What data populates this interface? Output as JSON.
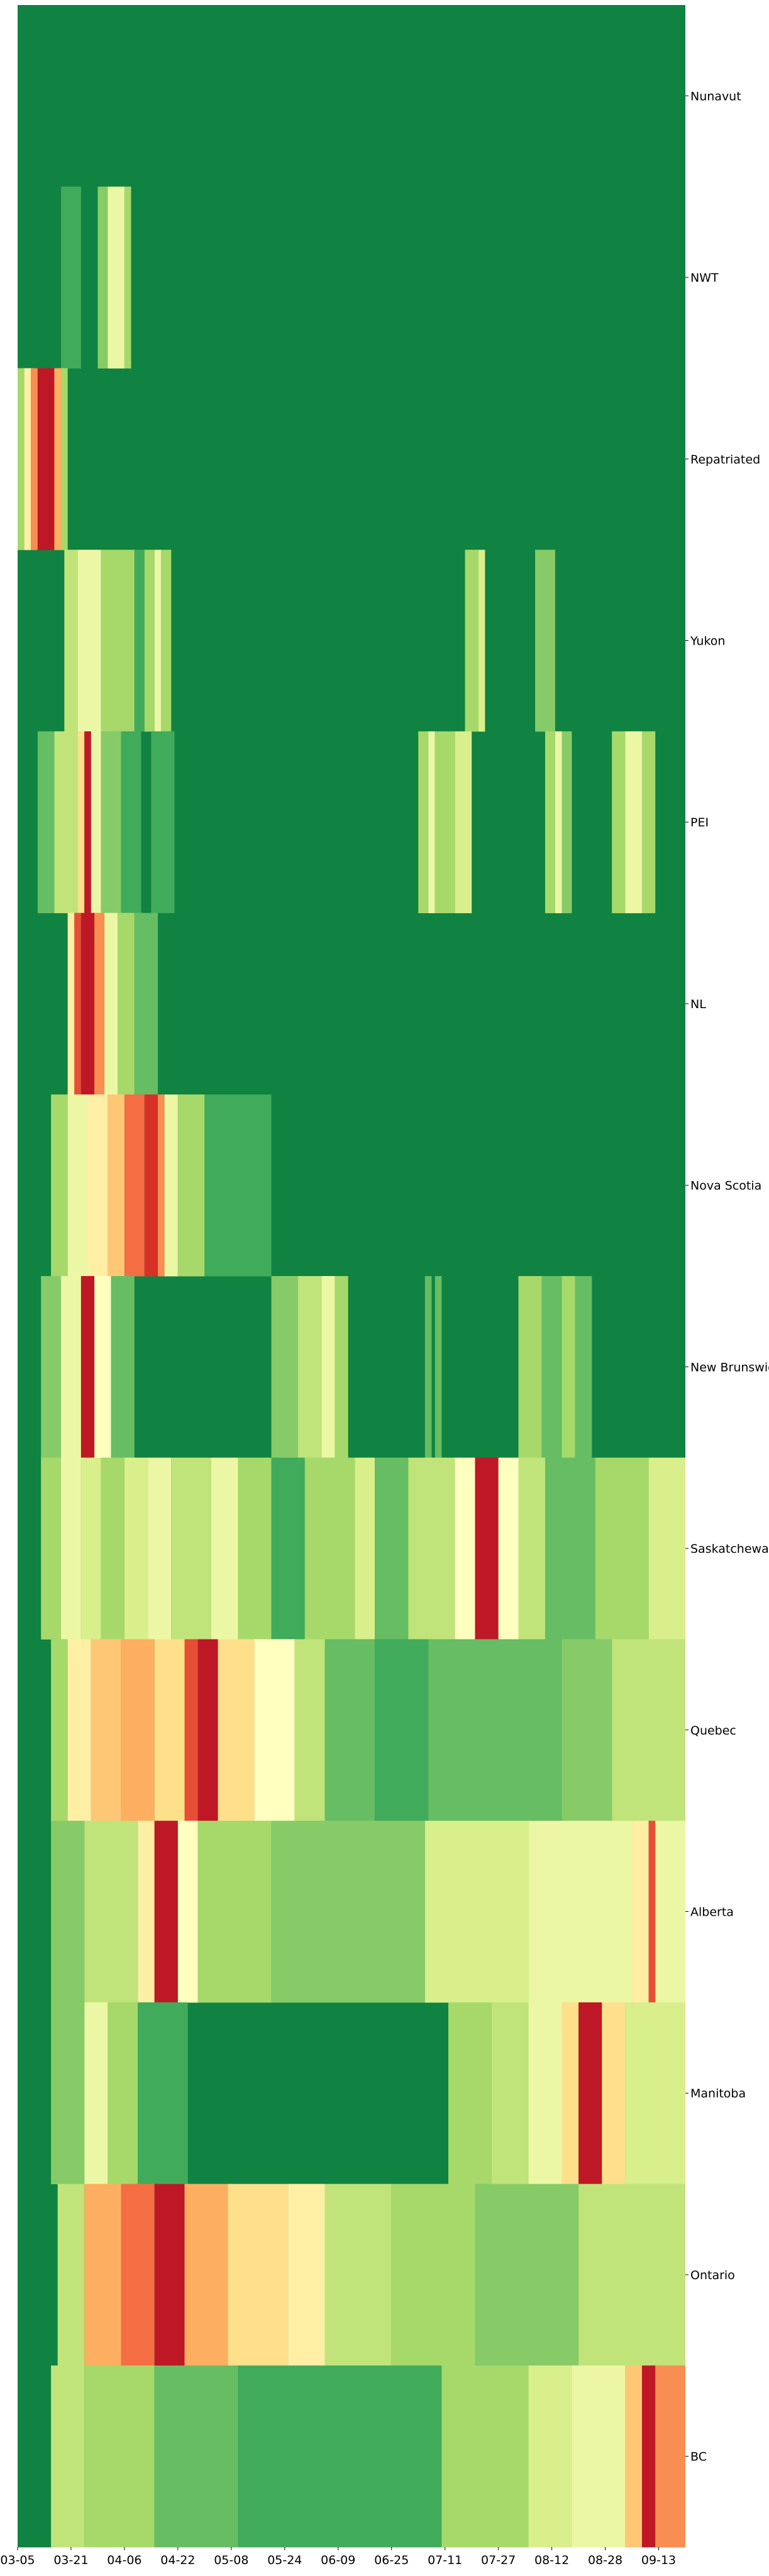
{
  "chart_data": {
    "type": "heatmap",
    "title": "",
    "xlabel": "",
    "ylabel": "",
    "start_date": "2020-03-05",
    "end_date": "2020-09-21",
    "x_tick_labels": [
      "03-05",
      "03-21",
      "04-06",
      "04-22",
      "05-08",
      "05-24",
      "06-09",
      "06-25",
      "07-11",
      "07-27",
      "08-12",
      "08-28",
      "09-13"
    ],
    "rows": [
      "Nunavut",
      "NWT",
      "Repatriated",
      "Yukon",
      "PEI",
      "NL",
      "Nova Scotia",
      "New Brunswick",
      "Saskatchewan",
      "Quebec",
      "Alberta",
      "Manitoba",
      "Ontario",
      "BC"
    ],
    "color_scale": "RdYlGn_r",
    "value_range": [
      0,
      1
    ],
    "colorbar": false,
    "grid": false,
    "description": "Per-province daily intensity, shown as bands over date ranges",
    "bands": [
      {
        "row": "NWT",
        "start": "2020-03-18",
        "end": "2020-03-24",
        "value": 0.15
      },
      {
        "row": "NWT",
        "start": "2020-03-29",
        "end": "2020-04-01",
        "value": 0.25
      },
      {
        "row": "NWT",
        "start": "2020-04-01",
        "end": "2020-04-06",
        "value": 0.45
      },
      {
        "row": "NWT",
        "start": "2020-04-06",
        "end": "2020-04-08",
        "value": 0.3
      },
      {
        "row": "Repatriated",
        "start": "2020-03-05",
        "end": "2020-03-07",
        "value": 0.3
      },
      {
        "row": "Repatriated",
        "start": "2020-03-07",
        "end": "2020-03-09",
        "value": 0.55
      },
      {
        "row": "Repatriated",
        "start": "2020-03-09",
        "end": "2020-03-11",
        "value": 0.75
      },
      {
        "row": "Repatriated",
        "start": "2020-03-11",
        "end": "2020-03-16",
        "value": 0.95
      },
      {
        "row": "Repatriated",
        "start": "2020-03-16",
        "end": "2020-03-18",
        "value": 0.7
      },
      {
        "row": "Repatriated",
        "start": "2020-03-18",
        "end": "2020-03-20",
        "value": 0.3
      },
      {
        "row": "Yukon",
        "start": "2020-03-19",
        "end": "2020-03-23",
        "value": 0.35
      },
      {
        "row": "Yukon",
        "start": "2020-03-23",
        "end": "2020-03-30",
        "value": 0.45
      },
      {
        "row": "Yukon",
        "start": "2020-03-30",
        "end": "2020-04-09",
        "value": 0.3
      },
      {
        "row": "Yukon",
        "start": "2020-04-09",
        "end": "2020-04-12",
        "value": 0.15
      },
      {
        "row": "Yukon",
        "start": "2020-04-12",
        "end": "2020-04-15",
        "value": 0.3
      },
      {
        "row": "Yukon",
        "start": "2020-04-15",
        "end": "2020-04-17",
        "value": 0.45
      },
      {
        "row": "Yukon",
        "start": "2020-04-17",
        "end": "2020-04-20",
        "value": 0.3
      },
      {
        "row": "Yukon",
        "start": "2020-07-17",
        "end": "2020-07-21",
        "value": 0.3
      },
      {
        "row": "Yukon",
        "start": "2020-07-21",
        "end": "2020-07-23",
        "value": 0.4
      },
      {
        "row": "Yukon",
        "start": "2020-08-07",
        "end": "2020-08-13",
        "value": 0.25
      },
      {
        "row": "PEI",
        "start": "2020-03-11",
        "end": "2020-03-16",
        "value": 0.2
      },
      {
        "row": "PEI",
        "start": "2020-03-16",
        "end": "2020-03-23",
        "value": 0.35
      },
      {
        "row": "PEI",
        "start": "2020-03-23",
        "end": "2020-03-25",
        "value": 0.6
      },
      {
        "row": "PEI",
        "start": "2020-03-25",
        "end": "2020-03-27",
        "value": 0.95
      },
      {
        "row": "PEI",
        "start": "2020-03-27",
        "end": "2020-03-30",
        "value": 0.45
      },
      {
        "row": "PEI",
        "start": "2020-03-30",
        "end": "2020-04-05",
        "value": 0.25
      },
      {
        "row": "PEI",
        "start": "2020-04-05",
        "end": "2020-04-11",
        "value": 0.15
      },
      {
        "row": "PEI",
        "start": "2020-04-14",
        "end": "2020-04-21",
        "value": 0.15
      },
      {
        "row": "PEI",
        "start": "2020-07-03",
        "end": "2020-07-06",
        "value": 0.3
      },
      {
        "row": "PEI",
        "start": "2020-07-06",
        "end": "2020-07-08",
        "value": 0.45
      },
      {
        "row": "PEI",
        "start": "2020-07-08",
        "end": "2020-07-14",
        "value": 0.3
      },
      {
        "row": "PEI",
        "start": "2020-07-14",
        "end": "2020-07-19",
        "value": 0.4
      },
      {
        "row": "PEI",
        "start": "2020-08-10",
        "end": "2020-08-13",
        "value": 0.3
      },
      {
        "row": "PEI",
        "start": "2020-08-13",
        "end": "2020-08-15",
        "value": 0.45
      },
      {
        "row": "PEI",
        "start": "2020-08-15",
        "end": "2020-08-18",
        "value": 0.25
      },
      {
        "row": "PEI",
        "start": "2020-08-30",
        "end": "2020-09-03",
        "value": 0.3
      },
      {
        "row": "PEI",
        "start": "2020-09-03",
        "end": "2020-09-08",
        "value": 0.45
      },
      {
        "row": "PEI",
        "start": "2020-09-08",
        "end": "2020-09-12",
        "value": 0.3
      },
      {
        "row": "NL",
        "start": "2020-03-20",
        "end": "2020-03-22",
        "value": 0.55
      },
      {
        "row": "NL",
        "start": "2020-03-22",
        "end": "2020-03-24",
        "value": 0.85
      },
      {
        "row": "NL",
        "start": "2020-03-24",
        "end": "2020-03-28",
        "value": 0.95
      },
      {
        "row": "NL",
        "start": "2020-03-28",
        "end": "2020-03-31",
        "value": 0.75
      },
      {
        "row": "NL",
        "start": "2020-03-31",
        "end": "2020-04-04",
        "value": 0.45
      },
      {
        "row": "NL",
        "start": "2020-04-04",
        "end": "2020-04-09",
        "value": 0.3
      },
      {
        "row": "NL",
        "start": "2020-04-09",
        "end": "2020-04-16",
        "value": 0.2
      },
      {
        "row": "Nova Scotia",
        "start": "2020-03-15",
        "end": "2020-03-20",
        "value": 0.3
      },
      {
        "row": "Nova Scotia",
        "start": "2020-03-20",
        "end": "2020-03-26",
        "value": 0.45
      },
      {
        "row": "Nova Scotia",
        "start": "2020-03-26",
        "end": "2020-04-01",
        "value": 0.55
      },
      {
        "row": "Nova Scotia",
        "start": "2020-04-01",
        "end": "2020-04-06",
        "value": 0.65
      },
      {
        "row": "Nova Scotia",
        "start": "2020-04-06",
        "end": "2020-04-12",
        "value": 0.8
      },
      {
        "row": "Nova Scotia",
        "start": "2020-04-12",
        "end": "2020-04-16",
        "value": 0.9
      },
      {
        "row": "Nova Scotia",
        "start": "2020-04-16",
        "end": "2020-04-18",
        "value": 0.75
      },
      {
        "row": "Nova Scotia",
        "start": "2020-04-18",
        "end": "2020-04-22",
        "value": 0.45
      },
      {
        "row": "Nova Scotia",
        "start": "2020-04-22",
        "end": "2020-04-30",
        "value": 0.3
      },
      {
        "row": "Nova Scotia",
        "start": "2020-04-30",
        "end": "2020-05-20",
        "value": 0.15
      },
      {
        "row": "New Brunswick",
        "start": "2020-03-12",
        "end": "2020-03-18",
        "value": 0.25
      },
      {
        "row": "New Brunswick",
        "start": "2020-03-18",
        "end": "2020-03-24",
        "value": 0.45
      },
      {
        "row": "New Brunswick",
        "start": "2020-03-24",
        "end": "2020-03-28",
        "value": 0.95
      },
      {
        "row": "New Brunswick",
        "start": "2020-03-28",
        "end": "2020-04-02",
        "value": 0.5
      },
      {
        "row": "New Brunswick",
        "start": "2020-04-02",
        "end": "2020-04-09",
        "value": 0.2
      },
      {
        "row": "New Brunswick",
        "start": "2020-05-20",
        "end": "2020-05-28",
        "value": 0.25
      },
      {
        "row": "New Brunswick",
        "start": "2020-05-28",
        "end": "2020-06-04",
        "value": 0.35
      },
      {
        "row": "New Brunswick",
        "start": "2020-06-04",
        "end": "2020-06-08",
        "value": 0.45
      },
      {
        "row": "New Brunswick",
        "start": "2020-06-08",
        "end": "2020-06-12",
        "value": 0.3
      },
      {
        "row": "New Brunswick",
        "start": "2020-07-05",
        "end": "2020-07-07",
        "value": 0.2
      },
      {
        "row": "New Brunswick",
        "start": "2020-07-08",
        "end": "2020-07-10",
        "value": 0.2
      },
      {
        "row": "New Brunswick",
        "start": "2020-08-02",
        "end": "2020-08-09",
        "value": 0.3
      },
      {
        "row": "New Brunswick",
        "start": "2020-08-09",
        "end": "2020-08-15",
        "value": 0.2
      },
      {
        "row": "New Brunswick",
        "start": "2020-08-15",
        "end": "2020-08-19",
        "value": 0.3
      },
      {
        "row": "New Brunswick",
        "start": "2020-08-19",
        "end": "2020-08-24",
        "value": 0.2
      },
      {
        "row": "Saskatchewan",
        "start": "2020-03-12",
        "end": "2020-03-18",
        "value": 0.3
      },
      {
        "row": "Saskatchewan",
        "start": "2020-03-18",
        "end": "2020-03-24",
        "value": 0.45
      },
      {
        "row": "Saskatchewan",
        "start": "2020-03-24",
        "end": "2020-03-30",
        "value": 0.4
      },
      {
        "row": "Saskatchewan",
        "start": "2020-03-30",
        "end": "2020-04-06",
        "value": 0.3
      },
      {
        "row": "Saskatchewan",
        "start": "2020-04-06",
        "end": "2020-04-13",
        "value": 0.4
      },
      {
        "row": "Saskatchewan",
        "start": "2020-04-13",
        "end": "2020-04-20",
        "value": 0.45
      },
      {
        "row": "Saskatchewan",
        "start": "2020-04-20",
        "end": "2020-05-02",
        "value": 0.35
      },
      {
        "row": "Saskatchewan",
        "start": "2020-05-02",
        "end": "2020-05-10",
        "value": 0.45
      },
      {
        "row": "Saskatchewan",
        "start": "2020-05-10",
        "end": "2020-05-20",
        "value": 0.3
      },
      {
        "row": "Saskatchewan",
        "start": "2020-05-20",
        "end": "2020-05-30",
        "value": 0.15
      },
      {
        "row": "Saskatchewan",
        "start": "2020-05-30",
        "end": "2020-06-14",
        "value": 0.3
      },
      {
        "row": "Saskatchewan",
        "start": "2020-06-14",
        "end": "2020-06-20",
        "value": 0.4
      },
      {
        "row": "Saskatchewan",
        "start": "2020-06-20",
        "end": "2020-06-30",
        "value": 0.2
      },
      {
        "row": "Saskatchewan",
        "start": "2020-06-30",
        "end": "2020-07-14",
        "value": 0.35
      },
      {
        "row": "Saskatchewan",
        "start": "2020-07-14",
        "end": "2020-07-20",
        "value": 0.5
      },
      {
        "row": "Saskatchewan",
        "start": "2020-07-20",
        "end": "2020-07-27",
        "value": 0.95
      },
      {
        "row": "Saskatchewan",
        "start": "2020-07-27",
        "end": "2020-08-02",
        "value": 0.5
      },
      {
        "row": "Saskatchewan",
        "start": "2020-08-02",
        "end": "2020-08-10",
        "value": 0.35
      },
      {
        "row": "Saskatchewan",
        "start": "2020-08-10",
        "end": "2020-08-25",
        "value": 0.2
      },
      {
        "row": "Saskatchewan",
        "start": "2020-08-25",
        "end": "2020-09-10",
        "value": 0.3
      },
      {
        "row": "Saskatchewan",
        "start": "2020-09-10",
        "end": "2020-09-21",
        "value": 0.4
      },
      {
        "row": "Quebec",
        "start": "2020-03-15",
        "end": "2020-03-20",
        "value": 0.3
      },
      {
        "row": "Quebec",
        "start": "2020-03-20",
        "end": "2020-03-27",
        "value": 0.55
      },
      {
        "row": "Quebec",
        "start": "2020-03-27",
        "end": "2020-04-05",
        "value": 0.65
      },
      {
        "row": "Quebec",
        "start": "2020-04-05",
        "end": "2020-04-15",
        "value": 0.7
      },
      {
        "row": "Quebec",
        "start": "2020-04-15",
        "end": "2020-04-24",
        "value": 0.6
      },
      {
        "row": "Quebec",
        "start": "2020-04-24",
        "end": "2020-04-28",
        "value": 0.85
      },
      {
        "row": "Quebec",
        "start": "2020-04-28",
        "end": "2020-05-04",
        "value": 0.95
      },
      {
        "row": "Quebec",
        "start": "2020-05-04",
        "end": "2020-05-15",
        "value": 0.6
      },
      {
        "row": "Quebec",
        "start": "2020-05-15",
        "end": "2020-05-27",
        "value": 0.5
      },
      {
        "row": "Quebec",
        "start": "2020-05-27",
        "end": "2020-06-05",
        "value": 0.35
      },
      {
        "row": "Quebec",
        "start": "2020-06-05",
        "end": "2020-06-20",
        "value": 0.2
      },
      {
        "row": "Quebec",
        "start": "2020-06-20",
        "end": "2020-07-06",
        "value": 0.15
      },
      {
        "row": "Quebec",
        "start": "2020-07-06",
        "end": "2020-08-15",
        "value": 0.2
      },
      {
        "row": "Quebec",
        "start": "2020-08-15",
        "end": "2020-08-30",
        "value": 0.25
      },
      {
        "row": "Quebec",
        "start": "2020-08-30",
        "end": "2020-09-21",
        "value": 0.35
      },
      {
        "row": "Alberta",
        "start": "2020-03-15",
        "end": "2020-03-25",
        "value": 0.25
      },
      {
        "row": "Alberta",
        "start": "2020-03-25",
        "end": "2020-04-10",
        "value": 0.35
      },
      {
        "row": "Alberta",
        "start": "2020-04-10",
        "end": "2020-04-15",
        "value": 0.55
      },
      {
        "row": "Alberta",
        "start": "2020-04-15",
        "end": "2020-04-22",
        "value": 0.95
      },
      {
        "row": "Alberta",
        "start": "2020-04-22",
        "end": "2020-04-28",
        "value": 0.5
      },
      {
        "row": "Alberta",
        "start": "2020-04-28",
        "end": "2020-05-20",
        "value": 0.3
      },
      {
        "row": "Alberta",
        "start": "2020-05-20",
        "end": "2020-07-05",
        "value": 0.25
      },
      {
        "row": "Alberta",
        "start": "2020-07-05",
        "end": "2020-08-05",
        "value": 0.4
      },
      {
        "row": "Alberta",
        "start": "2020-08-05",
        "end": "2020-09-05",
        "value": 0.45
      },
      {
        "row": "Alberta",
        "start": "2020-09-05",
        "end": "2020-09-10",
        "value": 0.55
      },
      {
        "row": "Alberta",
        "start": "2020-09-10",
        "end": "2020-09-12",
        "value": 0.85
      },
      {
        "row": "Alberta",
        "start": "2020-09-12",
        "end": "2020-09-21",
        "value": 0.45
      },
      {
        "row": "Manitoba",
        "start": "2020-03-15",
        "end": "2020-03-25",
        "value": 0.25
      },
      {
        "row": "Manitoba",
        "start": "2020-03-25",
        "end": "2020-04-01",
        "value": 0.45
      },
      {
        "row": "Manitoba",
        "start": "2020-04-01",
        "end": "2020-04-10",
        "value": 0.3
      },
      {
        "row": "Manitoba",
        "start": "2020-04-10",
        "end": "2020-04-25",
        "value": 0.15
      },
      {
        "row": "Manitoba",
        "start": "2020-07-12",
        "end": "2020-07-25",
        "value": 0.3
      },
      {
        "row": "Manitoba",
        "start": "2020-07-25",
        "end": "2020-08-05",
        "value": 0.35
      },
      {
        "row": "Manitoba",
        "start": "2020-08-05",
        "end": "2020-08-15",
        "value": 0.45
      },
      {
        "row": "Manitoba",
        "start": "2020-08-15",
        "end": "2020-08-20",
        "value": 0.6
      },
      {
        "row": "Manitoba",
        "start": "2020-08-20",
        "end": "2020-08-27",
        "value": 0.95
      },
      {
        "row": "Manitoba",
        "start": "2020-08-27",
        "end": "2020-09-03",
        "value": 0.6
      },
      {
        "row": "Manitoba",
        "start": "2020-09-03",
        "end": "2020-09-21",
        "value": 0.4
      },
      {
        "row": "Ontario",
        "start": "2020-03-17",
        "end": "2020-03-25",
        "value": 0.35
      },
      {
        "row": "Ontario",
        "start": "2020-03-25",
        "end": "2020-04-05",
        "value": 0.7
      },
      {
        "row": "Ontario",
        "start": "2020-04-05",
        "end": "2020-04-15",
        "value": 0.8
      },
      {
        "row": "Ontario",
        "start": "2020-04-15",
        "end": "2020-04-24",
        "value": 0.95
      },
      {
        "row": "Ontario",
        "start": "2020-04-24",
        "end": "2020-05-07",
        "value": 0.7
      },
      {
        "row": "Ontario",
        "start": "2020-05-07",
        "end": "2020-05-25",
        "value": 0.6
      },
      {
        "row": "Ontario",
        "start": "2020-05-25",
        "end": "2020-06-05",
        "value": 0.55
      },
      {
        "row": "Ontario",
        "start": "2020-06-05",
        "end": "2020-06-25",
        "value": 0.35
      },
      {
        "row": "Ontario",
        "start": "2020-06-25",
        "end": "2020-07-20",
        "value": 0.3
      },
      {
        "row": "Ontario",
        "start": "2020-07-20",
        "end": "2020-08-20",
        "value": 0.25
      },
      {
        "row": "Ontario",
        "start": "2020-08-20",
        "end": "2020-09-21",
        "value": 0.35
      },
      {
        "row": "BC",
        "start": "2020-03-15",
        "end": "2020-03-25",
        "value": 0.35
      },
      {
        "row": "BC",
        "start": "2020-03-25",
        "end": "2020-04-15",
        "value": 0.3
      },
      {
        "row": "BC",
        "start": "2020-04-15",
        "end": "2020-05-10",
        "value": 0.2
      },
      {
        "row": "BC",
        "start": "2020-05-10",
        "end": "2020-07-10",
        "value": 0.15
      },
      {
        "row": "BC",
        "start": "2020-07-10",
        "end": "2020-08-05",
        "value": 0.3
      },
      {
        "row": "BC",
        "start": "2020-08-05",
        "end": "2020-08-18",
        "value": 0.4
      },
      {
        "row": "BC",
        "start": "2020-08-18",
        "end": "2020-09-03",
        "value": 0.45
      },
      {
        "row": "BC",
        "start": "2020-09-03",
        "end": "2020-09-08",
        "value": 0.65
      },
      {
        "row": "BC",
        "start": "2020-09-08",
        "end": "2020-09-12",
        "value": 0.95
      },
      {
        "row": "BC",
        "start": "2020-09-12",
        "end": "2020-09-21",
        "value": 0.75
      }
    ]
  }
}
